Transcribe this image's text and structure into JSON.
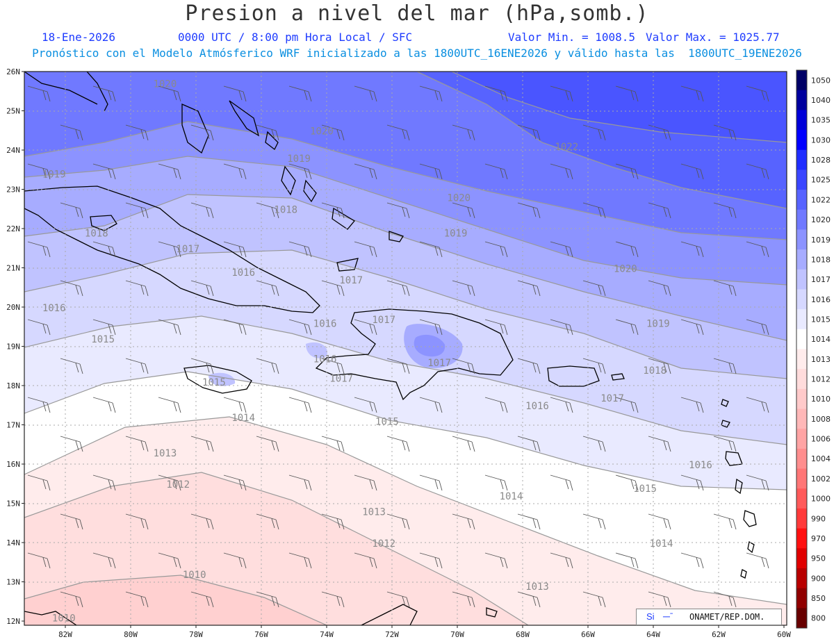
{
  "title": "Presion a nivel del mar (hPa,somb.)",
  "header": {
    "date": "18-Ene-2026",
    "time": "0000 UTC / 8:00 pm Hora Local / SFC",
    "valmin": "Valor Min. = 1008.5",
    "valmax": "Valor Max. = 1025.77",
    "forecast": "Pronóstico con el Modelo Atmósferico WRF inicializado a las 1800UTC_16ENE2026 y válido hasta las  1800UTC_19ENE2026"
  },
  "axes": {
    "lat_labels": [
      "26N",
      "25N",
      "24N",
      "23N",
      "22N",
      "21N",
      "20N",
      "19N",
      "18N",
      "17N",
      "16N",
      "15N",
      "14N",
      "13N",
      "12N"
    ],
    "lon_labels": [
      "82W",
      "80W",
      "78W",
      "76W",
      "74W",
      "72W",
      "70W",
      "68W",
      "66W",
      "64W",
      "62W",
      "60W"
    ]
  },
  "colorbar": {
    "labels": [
      "1050",
      "1040",
      "1035",
      "1030",
      "1028",
      "1025",
      "1022",
      "1020",
      "1019",
      "1018",
      "1017",
      "1016",
      "1015",
      "1014",
      "1013",
      "1012",
      "1010",
      "1008",
      "1006",
      "1004",
      "1002",
      "1000",
      "990",
      "970",
      "950",
      "900",
      "850",
      "800"
    ],
    "colors": [
      "#000066",
      "#00009e",
      "#0000d8",
      "#0000ff",
      "#1f2dff",
      "#3a46ff",
      "#5763ff",
      "#7079ff",
      "#8c93ff",
      "#a7acff",
      "#c0c3ff",
      "#d6d8ff",
      "#e9eaff",
      "#ffffff",
      "#ffecec",
      "#ffdcdc",
      "#ffcaca",
      "#ffb8b8",
      "#ffa4a4",
      "#ff8e8e",
      "#ff7676",
      "#ff5a5a",
      "#ff3a3a",
      "#ff1010",
      "#e00000",
      "#b80000",
      "#900000",
      "#680000"
    ]
  },
  "contour_labels": [
    {
      "text": "1020",
      "lon": -79.3,
      "lat": 25.7
    },
    {
      "text": "1020",
      "lon": -74.5,
      "lat": 24.5
    },
    {
      "text": "1019",
      "lon": -75.2,
      "lat": 23.8
    },
    {
      "text": "1019",
      "lon": -82.7,
      "lat": 23.4
    },
    {
      "text": "1018",
      "lon": -75.6,
      "lat": 22.5
    },
    {
      "text": "1018",
      "lon": -81.4,
      "lat": 21.9
    },
    {
      "text": "1017",
      "lon": -78.6,
      "lat": 21.5
    },
    {
      "text": "1016",
      "lon": -76.9,
      "lat": 20.9
    },
    {
      "text": "1016",
      "lon": -82.7,
      "lat": 20.0
    },
    {
      "text": "1022",
      "lon": -67.0,
      "lat": 24.1
    },
    {
      "text": "1020",
      "lon": -70.3,
      "lat": 22.8
    },
    {
      "text": "1019",
      "lon": -70.4,
      "lat": 21.9
    },
    {
      "text": "1017",
      "lon": -73.6,
      "lat": 20.7
    },
    {
      "text": "1016",
      "lon": -74.4,
      "lat": 19.6
    },
    {
      "text": "1017",
      "lon": -72.6,
      "lat": 19.7
    },
    {
      "text": "1020",
      "lon": -65.2,
      "lat": 21.0
    },
    {
      "text": "1019",
      "lon": -64.2,
      "lat": 19.6
    },
    {
      "text": "1015",
      "lon": -81.2,
      "lat": 19.2
    },
    {
      "text": "1016",
      "lon": -74.4,
      "lat": 18.7
    },
    {
      "text": "1017",
      "lon": -73.9,
      "lat": 18.2
    },
    {
      "text": "1017",
      "lon": -70.9,
      "lat": 18.6
    },
    {
      "text": "1018",
      "lon": -64.3,
      "lat": 18.4
    },
    {
      "text": "1017",
      "lon": -65.6,
      "lat": 17.7
    },
    {
      "text": "1015",
      "lon": -77.8,
      "lat": 18.1
    },
    {
      "text": "1014",
      "lon": -76.9,
      "lat": 17.2
    },
    {
      "text": "1015",
      "lon": -72.5,
      "lat": 17.1
    },
    {
      "text": "1016",
      "lon": -67.9,
      "lat": 17.5
    },
    {
      "text": "1016",
      "lon": -62.9,
      "lat": 16.0
    },
    {
      "text": "1013",
      "lon": -79.3,
      "lat": 16.3
    },
    {
      "text": "1012",
      "lon": -78.9,
      "lat": 15.5
    },
    {
      "text": "1014",
      "lon": -68.7,
      "lat": 15.2
    },
    {
      "text": "1015",
      "lon": -64.6,
      "lat": 15.4
    },
    {
      "text": "1013",
      "lon": -72.9,
      "lat": 14.8
    },
    {
      "text": "1012",
      "lon": -72.6,
      "lat": 14.0
    },
    {
      "text": "1014",
      "lon": -64.1,
      "lat": 14.0
    },
    {
      "text": "1010",
      "lon": -78.4,
      "lat": 13.2
    },
    {
      "text": "1013",
      "lon": -67.9,
      "lat": 12.9
    },
    {
      "text": "1010",
      "lon": -82.4,
      "lat": 12.1
    }
  ],
  "credit": {
    "si": "Si",
    "org": "ONAMET/REP.DOM."
  }
}
